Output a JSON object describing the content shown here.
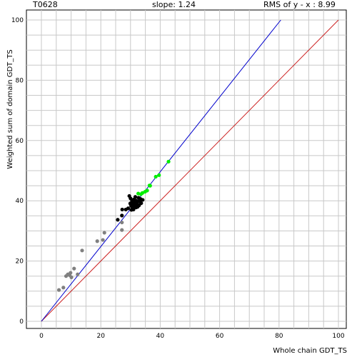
{
  "header": {
    "target": "T0628",
    "slope": "slope: 1.24",
    "rms": "RMS of  y - x : 8.99"
  },
  "chart_data": {
    "type": "scatter",
    "title": "",
    "xlabel": "Whole chain GDT_TS",
    "ylabel": "Weighted sum of domain GDT_TS",
    "xlim": [
      0,
      100
    ],
    "ylim": [
      0,
      100
    ],
    "x_ticks": [
      0,
      20,
      40,
      60,
      80,
      100
    ],
    "y_ticks": [
      0,
      20,
      40,
      60,
      80,
      100
    ],
    "grid": true,
    "lines": [
      {
        "name": "y=x",
        "color": "#cc2222",
        "points": [
          [
            0,
            0
          ],
          [
            100,
            100
          ]
        ]
      },
      {
        "name": "fit",
        "color": "#0000cc",
        "points": [
          [
            0,
            0
          ],
          [
            80.6,
            100
          ]
        ]
      }
    ],
    "series": [
      {
        "color": "#808080",
        "points": [
          [
            5.9,
            10.4
          ],
          [
            7.4,
            11.2
          ],
          [
            8.3,
            15.0
          ],
          [
            8.9,
            15.6
          ],
          [
            9.5,
            15.3
          ],
          [
            9.8,
            16.1
          ],
          [
            10.1,
            14.6
          ],
          [
            11.0,
            17.5
          ],
          [
            12.2,
            15.6
          ],
          [
            13.7,
            23.5
          ],
          [
            18.8,
            26.6
          ],
          [
            20.7,
            27.0
          ],
          [
            21.2,
            29.4
          ],
          [
            27.1,
            30.3
          ],
          [
            27.1,
            32.8
          ]
        ]
      },
      {
        "color": "#000000",
        "points": [
          [
            25.7,
            33.7
          ],
          [
            27.1,
            35.1
          ],
          [
            27.2,
            37.1
          ],
          [
            28.4,
            37.1
          ],
          [
            29.2,
            37.5
          ],
          [
            29.6,
            41.6
          ],
          [
            29.9,
            39.1
          ],
          [
            30.0,
            40.8
          ],
          [
            30.2,
            38.3
          ],
          [
            30.3,
            37.0
          ],
          [
            30.5,
            40.0
          ],
          [
            30.7,
            37.8
          ],
          [
            30.8,
            38.6
          ],
          [
            30.9,
            39.6
          ],
          [
            31.0,
            37.1
          ],
          [
            31.1,
            40.4
          ],
          [
            31.3,
            38.2
          ],
          [
            31.5,
            39.0
          ],
          [
            31.6,
            41.3
          ],
          [
            31.8,
            40.1
          ],
          [
            31.9,
            37.8
          ],
          [
            32.0,
            38.8
          ],
          [
            32.2,
            39.4
          ],
          [
            32.4,
            38.0
          ],
          [
            32.6,
            39.8
          ],
          [
            32.7,
            41.0
          ],
          [
            32.9,
            38.5
          ],
          [
            33.2,
            39.7
          ],
          [
            33.4,
            40.6
          ],
          [
            33.6,
            39.2
          ],
          [
            34.1,
            40.3
          ]
        ]
      },
      {
        "color": "#00ee00",
        "points": [
          [
            32.6,
            42.4
          ],
          [
            33.5,
            42.2
          ],
          [
            34.0,
            42.6
          ],
          [
            34.9,
            43.0
          ],
          [
            35.6,
            43.4
          ],
          [
            36.4,
            45.1
          ],
          [
            36.6,
            45.0
          ],
          [
            38.5,
            48.0
          ],
          [
            39.6,
            48.5
          ],
          [
            42.8,
            53.0
          ]
        ]
      }
    ]
  }
}
